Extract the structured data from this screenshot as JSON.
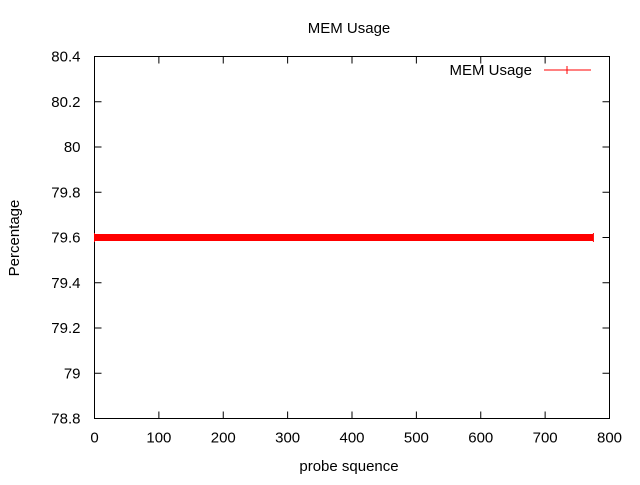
{
  "chart_data": {
    "type": "line",
    "title": "MEM Usage",
    "xlabel": "probe squence",
    "ylabel": "Percentage",
    "xlim": [
      0,
      800
    ],
    "ylim": [
      78.8,
      80.4
    ],
    "x_ticks": [
      0,
      100,
      200,
      300,
      400,
      500,
      600,
      700,
      800
    ],
    "y_ticks": [
      "78.8",
      "79",
      "79.2",
      "79.4",
      "79.6",
      "79.8",
      "80",
      "80.2",
      "80.4"
    ],
    "grid": false,
    "legend_position": "top-right",
    "series": [
      {
        "name": "MEM Usage",
        "color": "#ff0000",
        "marker": "plus",
        "x_range": [
          0,
          775
        ],
        "value": 79.6
      }
    ]
  }
}
